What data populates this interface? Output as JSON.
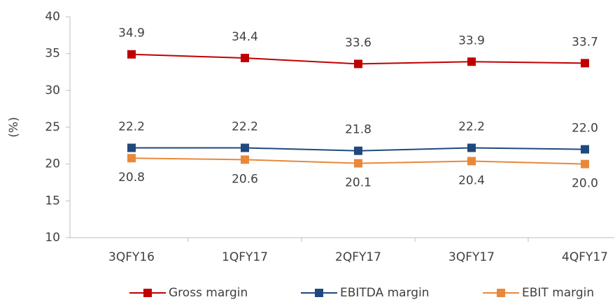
{
  "chart_data": {
    "type": "line",
    "y_label": "(%)",
    "categories": [
      "3QFY16",
      "1QFY17",
      "2QFY17",
      "3QFY17",
      "4QFY17"
    ],
    "series": [
      {
        "name": "Gross margin",
        "color": "#c00000",
        "values": [
          34.9,
          34.4,
          33.6,
          33.9,
          33.7
        ],
        "value_labels": [
          "34.9",
          "34.4",
          "33.6",
          "33.9",
          "33.7"
        ],
        "label_position": "above"
      },
      {
        "name": "EBITDA margin",
        "color": "#1f497d",
        "values": [
          22.2,
          22.2,
          21.8,
          22.2,
          22.0
        ],
        "value_labels": [
          "22.2",
          "22.2",
          "21.8",
          "22.2",
          "22.0"
        ],
        "label_position": "above"
      },
      {
        "name": "EBIT margin",
        "color": "#e9883a",
        "values": [
          20.8,
          20.6,
          20.1,
          20.4,
          20.0
        ],
        "value_labels": [
          "20.8",
          "20.6",
          "20.1",
          "20.4",
          "20.0"
        ],
        "label_position": "below"
      }
    ],
    "ylim": [
      10,
      40
    ],
    "yticks": [
      10,
      15,
      20,
      25,
      30,
      35,
      40
    ],
    "legend": "bottom"
  }
}
